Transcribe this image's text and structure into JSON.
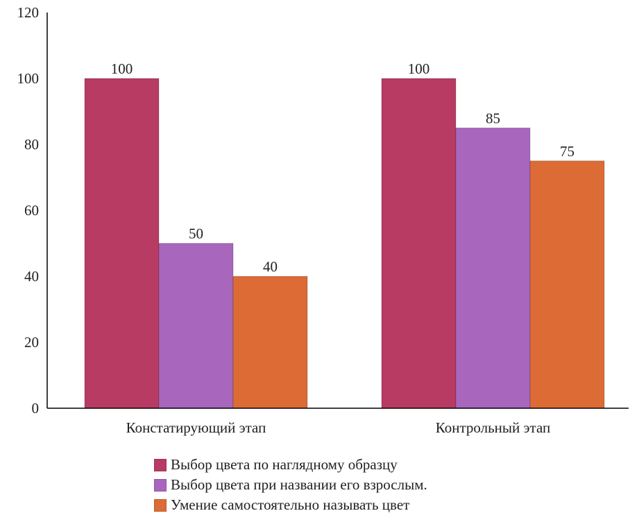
{
  "chart_data": {
    "type": "bar",
    "title": "",
    "xlabel": "",
    "ylabel": "",
    "ylim": [
      0,
      120
    ],
    "yticks": [
      0,
      20,
      40,
      60,
      80,
      100,
      120
    ],
    "grid": false,
    "legend_position": "bottom",
    "categories": [
      "Констатирующий этап",
      "Контрольный этап"
    ],
    "series": [
      {
        "name": "Выбор цвета по наглядному образцу",
        "color": "#b83b63",
        "values": [
          100,
          100
        ]
      },
      {
        "name": "Выбор цвета при названии его взрослым.",
        "color": "#a866bd",
        "values": [
          50,
          85
        ]
      },
      {
        "name": "Умение самостоятельно называть цвет",
        "color": "#dc6b35",
        "values": [
          40,
          75
        ]
      }
    ]
  }
}
